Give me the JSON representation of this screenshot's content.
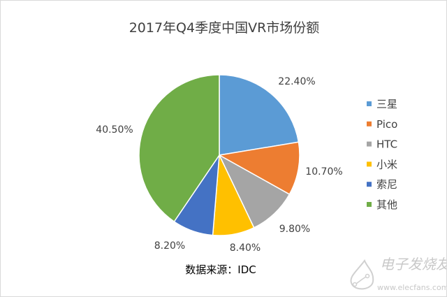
{
  "chart_data": {
    "type": "pie",
    "title": "2017年Q4季度中国VR市场份额",
    "categories": [
      "三星",
      "Pico",
      "HTC",
      "小米",
      "索尼",
      "其他"
    ],
    "values": [
      22.4,
      10.7,
      9.8,
      8.4,
      8.2,
      40.5
    ],
    "data_labels": [
      "22.40%",
      "10.70%",
      "9.80%",
      "8.40%",
      "8.20%",
      "40.50%"
    ],
    "colors": [
      "#5B9BD5",
      "#ED7D31",
      "#A5A5A5",
      "#FFC000",
      "#4472C4",
      "#70AD47"
    ],
    "legend_position": "right",
    "source_note": "数据来源：IDC"
  },
  "watermark": {
    "name": "电子发烧友",
    "url": "www.elecfans.com"
  }
}
